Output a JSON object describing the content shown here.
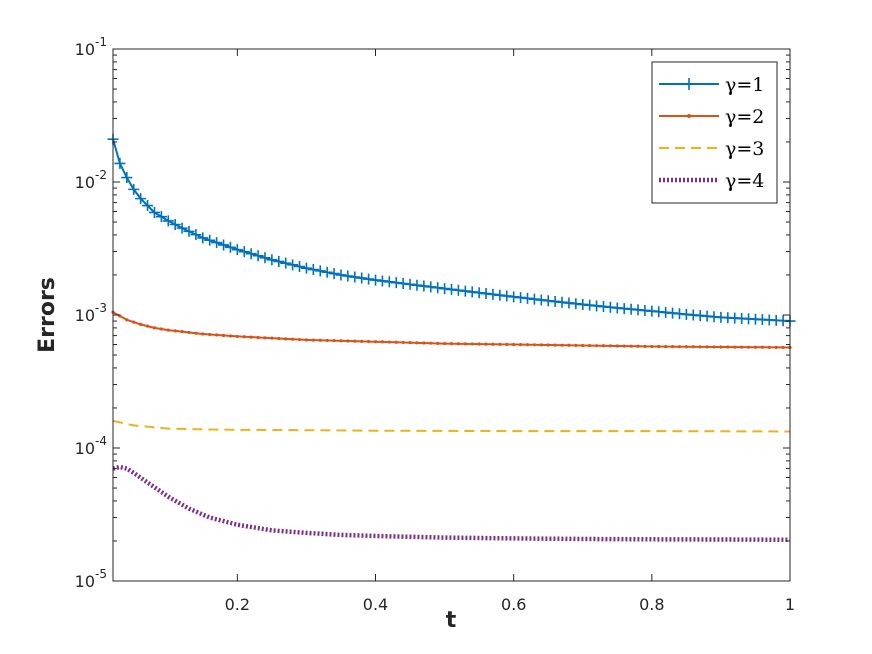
{
  "chart_data": {
    "type": "line",
    "xlabel": "t",
    "ylabel": "Errors",
    "xlim": [
      0.02,
      1
    ],
    "ylim": [
      1e-05,
      0.1
    ],
    "y_scale": "log",
    "grid": false,
    "legend_position": "top-right",
    "x_ticks": [
      {
        "value": 0.2,
        "label": "0.2"
      },
      {
        "value": 0.4,
        "label": "0.4"
      },
      {
        "value": 0.6,
        "label": "0.6"
      },
      {
        "value": 0.8,
        "label": "0.8"
      },
      {
        "value": 1,
        "label": "1"
      }
    ],
    "y_ticks": [
      {
        "value": 1e-05,
        "base": "10",
        "exp": "-5"
      },
      {
        "value": 0.0001,
        "base": "10",
        "exp": "-4"
      },
      {
        "value": 0.001,
        "base": "10",
        "exp": "-3"
      },
      {
        "value": 0.01,
        "base": "10",
        "exp": "-2"
      },
      {
        "value": 0.1,
        "base": "10",
        "exp": "-1"
      }
    ],
    "series": [
      {
        "name": "γ=1",
        "color": "#0072BD",
        "line_style": "solid",
        "marker": "plus",
        "x": [
          0.02,
          0.03,
          0.04,
          0.05,
          0.06,
          0.08,
          0.1,
          0.12,
          0.15,
          0.2,
          0.25,
          0.3,
          0.35,
          0.4,
          0.45,
          0.5,
          0.55,
          0.6,
          0.65,
          0.7,
          0.75,
          0.8,
          0.85,
          0.9,
          0.95,
          1.0
        ],
        "y": [
          0.021,
          0.0138,
          0.0108,
          0.0088,
          0.0075,
          0.0059,
          0.0051,
          0.0045,
          0.0038,
          0.0031,
          0.0026,
          0.00225,
          0.002,
          0.00183,
          0.0017,
          0.00158,
          0.00147,
          0.00137,
          0.00128,
          0.0012,
          0.00113,
          0.00107,
          0.00101,
          0.00096,
          0.00093,
          0.0009
        ]
      },
      {
        "name": "γ=2",
        "color": "#D95319",
        "line_style": "solid",
        "marker": "dot",
        "x": [
          0.02,
          0.04,
          0.06,
          0.08,
          0.1,
          0.15,
          0.2,
          0.3,
          0.4,
          0.5,
          0.6,
          0.7,
          0.8,
          0.9,
          1.0
        ],
        "y": [
          0.00105,
          0.00092,
          0.00085,
          0.0008,
          0.00077,
          0.00072,
          0.00069,
          0.00065,
          0.00063,
          0.00061,
          0.0006,
          0.00059,
          0.00058,
          0.000575,
          0.00057
        ]
      },
      {
        "name": "γ=3",
        "color": "#EDB120",
        "line_style": "dashed",
        "marker": "none",
        "x": [
          0.02,
          0.05,
          0.1,
          0.15,
          0.2,
          0.3,
          0.4,
          0.6,
          0.8,
          1.0
        ],
        "y": [
          0.00016,
          0.000148,
          0.00014,
          0.000138,
          0.000137,
          0.000136,
          0.000135,
          0.000134,
          0.000134,
          0.000133
        ]
      },
      {
        "name": "γ=4",
        "color": "#7E2F8E",
        "line_style": "dotted",
        "marker": "none",
        "x": [
          0.02,
          0.03,
          0.04,
          0.05,
          0.07,
          0.1,
          0.13,
          0.16,
          0.2,
          0.25,
          0.3,
          0.35,
          0.4,
          0.5,
          0.6,
          0.7,
          0.8,
          0.9,
          1.0
        ],
        "y": [
          7e-05,
          7.2e-05,
          7e-05,
          6.5e-05,
          5.5e-05,
          4.3e-05,
          3.5e-05,
          3e-05,
          2.65e-05,
          2.4e-05,
          2.3e-05,
          2.22e-05,
          2.18e-05,
          2.12e-05,
          2.09e-05,
          2.07e-05,
          2.06e-05,
          2.05e-05,
          2.04e-05
        ]
      }
    ]
  }
}
